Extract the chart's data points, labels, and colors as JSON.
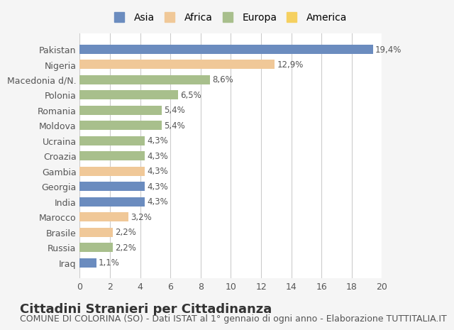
{
  "categories": [
    "Iraq",
    "Russia",
    "Brasile",
    "Marocco",
    "India",
    "Georgia",
    "Gambia",
    "Croazia",
    "Ucraina",
    "Moldova",
    "Romania",
    "Polonia",
    "Macedonia d/N.",
    "Nigeria",
    "Pakistan"
  ],
  "values": [
    1.1,
    2.2,
    2.2,
    3.2,
    4.3,
    4.3,
    4.3,
    4.3,
    4.3,
    5.4,
    5.4,
    6.5,
    8.6,
    12.9,
    19.4
  ],
  "labels": [
    "1,1%",
    "2,2%",
    "2,2%",
    "3,2%",
    "4,3%",
    "4,3%",
    "4,3%",
    "4,3%",
    "4,3%",
    "5,4%",
    "5,4%",
    "6,5%",
    "8,6%",
    "12,9%",
    "19,4%"
  ],
  "colors": [
    "#6b8cbf",
    "#a8bf8c",
    "#f0c898",
    "#f0c898",
    "#6b8cbf",
    "#6b8cbf",
    "#f0c898",
    "#a8bf8c",
    "#a8bf8c",
    "#a8bf8c",
    "#a8bf8c",
    "#a8bf8c",
    "#a8bf8c",
    "#f0c898",
    "#6b8cbf"
  ],
  "continent_colors": {
    "Asia": "#6b8cbf",
    "Africa": "#f0c898",
    "Europa": "#a8bf8c",
    "America": "#f5d060"
  },
  "legend_labels": [
    "Asia",
    "Africa",
    "Europa",
    "America"
  ],
  "title": "Cittadini Stranieri per Cittadinanza",
  "subtitle": "COMUNE DI COLORINA (SO) - Dati ISTAT al 1° gennaio di ogni anno - Elaborazione TUTTITALIA.IT",
  "xlim": [
    0,
    20
  ],
  "xticks": [
    0,
    2,
    4,
    6,
    8,
    10,
    12,
    14,
    16,
    18,
    20
  ],
  "background_color": "#f5f5f5",
  "bar_background": "#ffffff",
  "grid_color": "#cccccc",
  "title_fontsize": 13,
  "subtitle_fontsize": 9,
  "label_fontsize": 8.5,
  "tick_fontsize": 9
}
